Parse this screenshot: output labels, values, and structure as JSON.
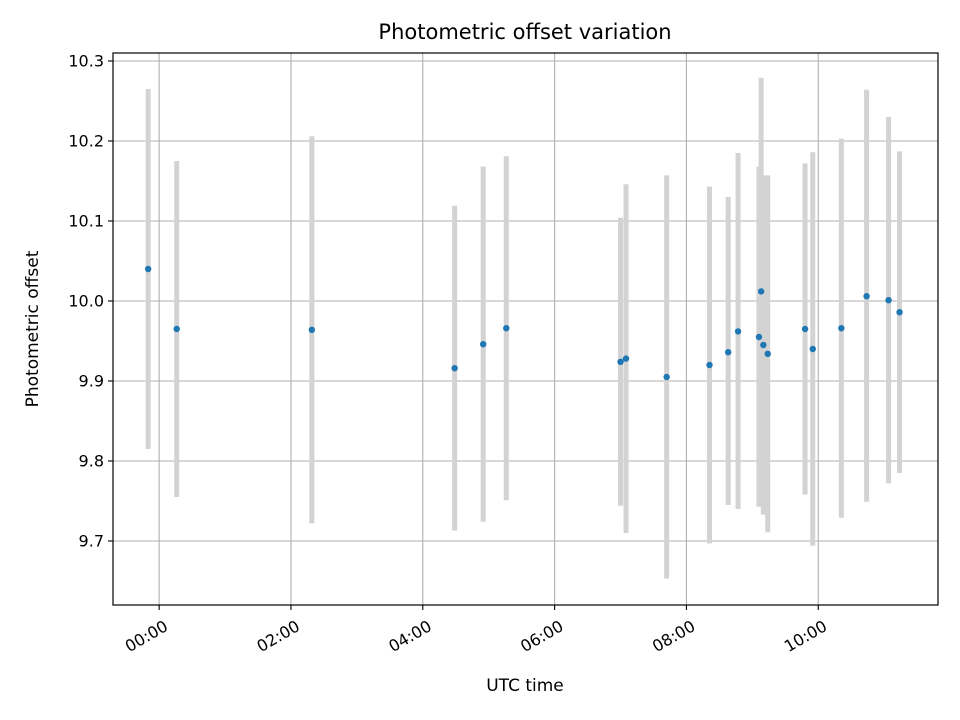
{
  "chart_data": {
    "type": "scatter",
    "title": "Photometric offset variation",
    "xlabel": "UTC time",
    "ylabel": "Photometric offset",
    "grid": true,
    "legend": "none",
    "x_unit": "UTC time (HH:MM)",
    "xlim": [
      "-00:42",
      "11:49"
    ],
    "ylim": [
      9.62,
      10.31
    ],
    "x_ticks": [
      "00:00",
      "02:00",
      "04:00",
      "06:00",
      "08:00",
      "10:00"
    ],
    "y_ticks": [
      "9.7",
      "9.8",
      "9.9",
      "10.0",
      "10.1",
      "10.2",
      "10.3"
    ],
    "colors": {
      "marker": "#1f77b4",
      "errorbar": "#d3d3d3",
      "grid": "#b0b0b0"
    },
    "series": [
      {
        "points": [
          {
            "x": "-00:10",
            "y": 10.04,
            "low": 9.815,
            "high": 10.265
          },
          {
            "x": "00:16",
            "y": 9.965,
            "low": 9.755,
            "high": 10.175
          },
          {
            "x": "02:19",
            "y": 9.964,
            "low": 9.722,
            "high": 10.206
          },
          {
            "x": "04:29",
            "y": 9.916,
            "low": 9.713,
            "high": 10.119
          },
          {
            "x": "04:55",
            "y": 9.946,
            "low": 9.724,
            "high": 10.168
          },
          {
            "x": "05:16",
            "y": 9.966,
            "low": 9.751,
            "high": 10.181
          },
          {
            "x": "07:00",
            "y": 9.924,
            "low": 9.744,
            "high": 10.104
          },
          {
            "x": "07:05",
            "y": 9.928,
            "low": 9.71,
            "high": 10.146
          },
          {
            "x": "07:42",
            "y": 9.905,
            "low": 9.653,
            "high": 10.157
          },
          {
            "x": "08:21",
            "y": 9.92,
            "low": 9.697,
            "high": 10.143
          },
          {
            "x": "08:38",
            "y": 9.936,
            "low": 9.745,
            "high": 10.13
          },
          {
            "x": "08:47",
            "y": 9.962,
            "low": 9.74,
            "high": 10.185
          },
          {
            "x": "09:06",
            "y": 9.955,
            "low": 9.743,
            "high": 10.168
          },
          {
            "x": "09:08",
            "y": 10.012,
            "low": 9.745,
            "high": 10.279
          },
          {
            "x": "09:10",
            "y": 9.945,
            "low": 9.733,
            "high": 10.157
          },
          {
            "x": "09:14",
            "y": 9.934,
            "low": 9.711,
            "high": 10.157
          },
          {
            "x": "09:48",
            "y": 9.965,
            "low": 9.758,
            "high": 10.172
          },
          {
            "x": "09:55",
            "y": 9.94,
            "low": 9.694,
            "high": 10.186
          },
          {
            "x": "10:21",
            "y": 9.966,
            "low": 9.729,
            "high": 10.203
          },
          {
            "x": "10:44",
            "y": 10.006,
            "low": 9.749,
            "high": 10.264
          },
          {
            "x": "11:04",
            "y": 10.001,
            "low": 9.772,
            "high": 10.23
          },
          {
            "x": "11:14",
            "y": 9.986,
            "low": 9.785,
            "high": 10.187
          }
        ]
      }
    ]
  }
}
